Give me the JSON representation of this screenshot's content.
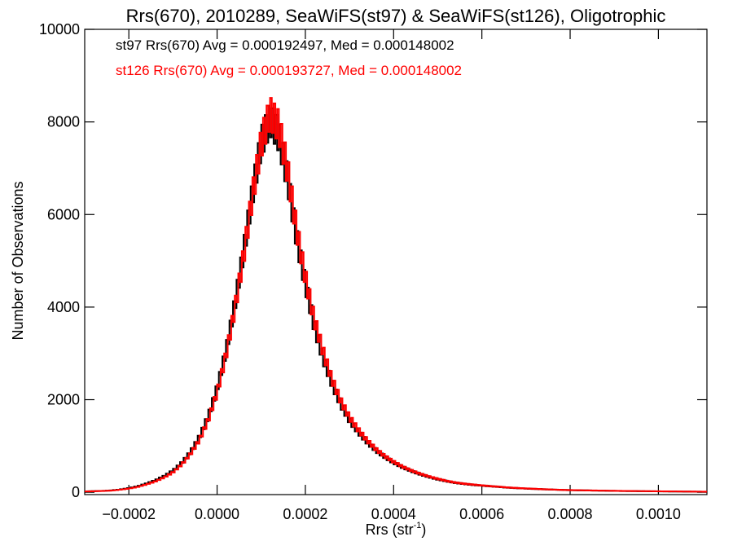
{
  "chart_data": {
    "type": "line",
    "title": "Rrs(670), 2010289, SeaWiFS(st97) & SeaWiFS(st126), Oligotrophic",
    "xlabel": {
      "main": "Rrs (str",
      "sup": "-1",
      "close": ")"
    },
    "ylabel": "Number of Observations",
    "xlim": [
      -0.0003,
      0.00111
    ],
    "ylim": [
      -50,
      10000
    ],
    "x_ticks": [
      -0.0002,
      0.0,
      0.0002,
      0.0004,
      0.0006,
      0.0008,
      0.001
    ],
    "x_tick_labels": [
      "−0.0002",
      "0.0000",
      "0.0002",
      "0.0004",
      "0.0006",
      "0.0008",
      "0.0010"
    ],
    "y_ticks": [
      0,
      2000,
      4000,
      6000,
      8000,
      10000
    ],
    "y_tick_labels": [
      "0",
      "2000",
      "4000",
      "6000",
      "8000",
      "10000"
    ],
    "annotations": [
      {
        "text": "st97 Rrs(670) Avg = 0.000192497, Med = 0.000148002",
        "color": "#000000"
      },
      {
        "text": "st126 Rrs(670) Avg = 0.000193727, Med = 0.000148002",
        "color": "#ff0000"
      }
    ],
    "series": [
      {
        "color": "#000000",
        "x": [
          -0.0003,
          -0.00028,
          -0.00026,
          -0.00024,
          -0.00022,
          -0.0002,
          -0.00018,
          -0.00016,
          -0.00014,
          -0.00012,
          -0.0001,
          -8e-05,
          -6e-05,
          -4e-05,
          -2e-05,
          0.0,
          2e-05,
          4e-05,
          6e-05,
          8e-05,
          0.0001,
          0.00012,
          0.00014,
          0.00016,
          0.00018,
          0.0002,
          0.00022,
          0.00024,
          0.00026,
          0.00028,
          0.0003,
          0.00032,
          0.00034,
          0.00036,
          0.00038,
          0.0004,
          0.00042,
          0.00044,
          0.00046,
          0.00048,
          0.0005,
          0.00052,
          0.00054,
          0.00056,
          0.00058,
          0.0006,
          0.00062,
          0.00064,
          0.00066,
          0.00068,
          0.0007,
          0.00072,
          0.00074,
          0.00076,
          0.00078,
          0.0008,
          0.00085,
          0.0009,
          0.00095,
          0.001,
          0.00105,
          0.0011
        ],
        "y": [
          20,
          25,
          30,
          40,
          60,
          90,
          130,
          190,
          260,
          350,
          470,
          640,
          880,
          1200,
          1650,
          2250,
          3050,
          4050,
          5200,
          6450,
          7550,
          8050,
          7700,
          6750,
          5500,
          4500,
          3600,
          2900,
          2350,
          1900,
          1550,
          1300,
          1080,
          900,
          760,
          640,
          540,
          460,
          390,
          330,
          280,
          240,
          205,
          180,
          160,
          145,
          130,
          115,
          100,
          90,
          80,
          72,
          65,
          58,
          52,
          46,
          38,
          30,
          25,
          20,
          16,
          12
        ]
      },
      {
        "color": "#ff0000",
        "x": [
          -0.0003,
          -0.00028,
          -0.00026,
          -0.00024,
          -0.00022,
          -0.0002,
          -0.00018,
          -0.00016,
          -0.00014,
          -0.00012,
          -0.0001,
          -8e-05,
          -6e-05,
          -4e-05,
          -2e-05,
          0.0,
          2e-05,
          4e-05,
          6e-05,
          8e-05,
          0.0001,
          0.00012,
          0.00014,
          0.00016,
          0.00018,
          0.0002,
          0.00022,
          0.00024,
          0.00026,
          0.00028,
          0.0003,
          0.00032,
          0.00034,
          0.00036,
          0.00038,
          0.0004,
          0.00042,
          0.00044,
          0.00046,
          0.00048,
          0.0005,
          0.00052,
          0.00054,
          0.00056,
          0.00058,
          0.0006,
          0.00062,
          0.00064,
          0.00066,
          0.00068,
          0.0007,
          0.00072,
          0.00074,
          0.00076,
          0.00078,
          0.0008,
          0.00085,
          0.0009,
          0.00095,
          0.001,
          0.00105,
          0.0011
        ],
        "y": [
          18,
          22,
          28,
          36,
          55,
          80,
          115,
          170,
          235,
          320,
          430,
          600,
          830,
          1130,
          1560,
          2150,
          2950,
          3950,
          5100,
          6400,
          7550,
          8200,
          7900,
          6950,
          5700,
          4650,
          3750,
          3050,
          2450,
          1980,
          1620,
          1350,
          1120,
          930,
          780,
          660,
          555,
          470,
          400,
          340,
          290,
          245,
          210,
          185,
          165,
          148,
          132,
          118,
          103,
          92,
          82,
          74,
          66,
          59,
          53,
          47,
          39,
          31,
          26,
          21,
          17,
          13
        ]
      }
    ]
  }
}
